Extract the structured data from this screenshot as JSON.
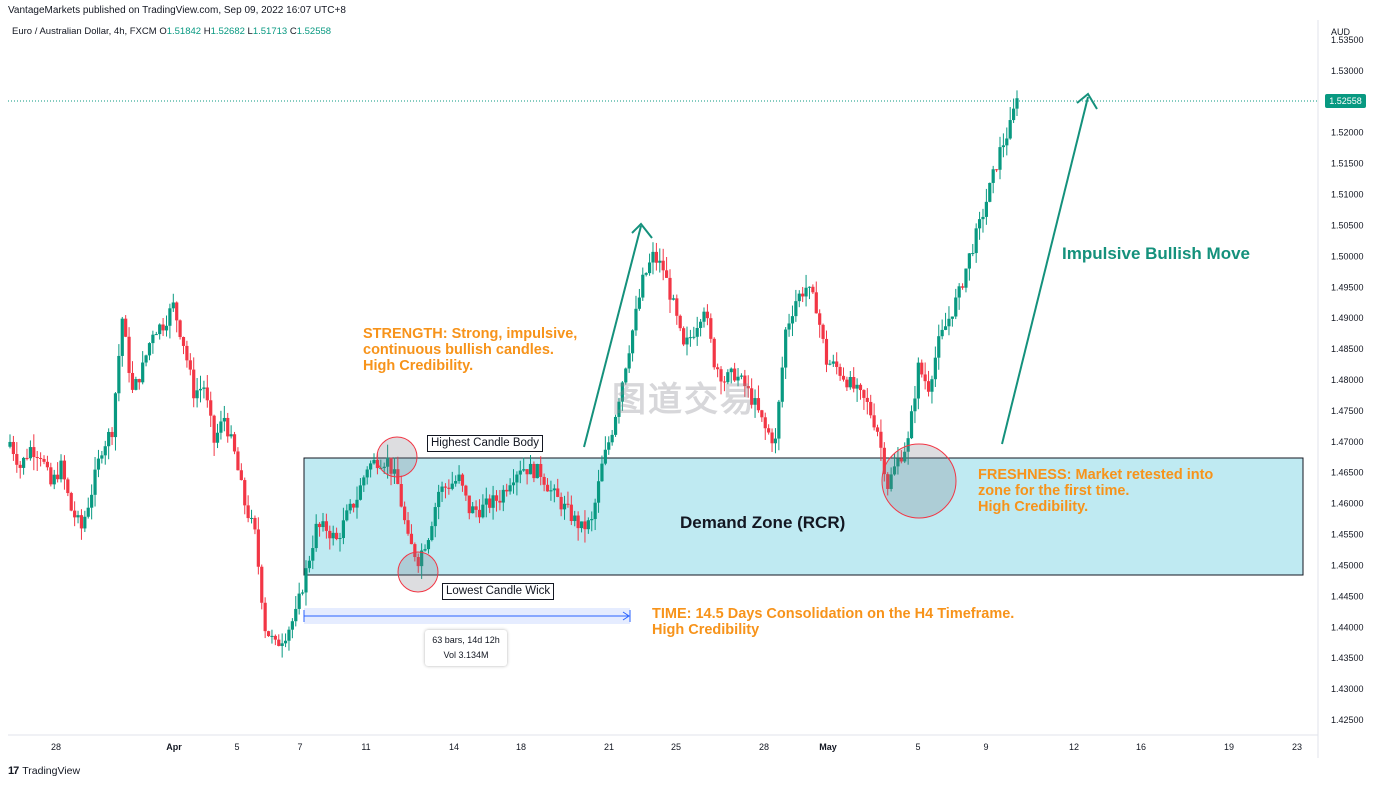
{
  "header": {
    "publisher_line": "VantageMarkets published on TradingView.com, Sep 09, 2022 16:07 UTC+8",
    "symbol": "Euro / Australian Dollar, 4h, FXCM",
    "o_label": "O",
    "o_value": "1.51842",
    "h_label": "H",
    "h_value": "1.52682",
    "l_label": "L",
    "l_value": "1.51713",
    "c_label": "C",
    "c_value": "1.52558"
  },
  "footer": {
    "brand": "TradingView",
    "brand_mark": "17"
  },
  "watermark": "图道交易",
  "price_axis": {
    "unit": "AUD",
    "current_price": "1.52558"
  },
  "annotations": {
    "strength": "STRENGTH: Strong, impulsive,\ncontinuous bullish candles.\nHigh Credibility.",
    "freshness": "FRESHNESS: Market retested into\nzone for the first time.\nHigh Credibility.",
    "time": "TIME: 14.5 Days Consolidation on the H4 Timeframe.\nHigh Credibility",
    "impulsive": "Impulsive Bullish Move",
    "demand_zone": "Demand Zone (RCR)",
    "highest_body": "Highest Candle Body",
    "lowest_wick": "Lowest Candle Wick",
    "measure_bars": "63 bars, 14d 12h",
    "measure_vol": "Vol 3.134M"
  },
  "colors": {
    "bull": "#089981",
    "bear": "#f23645",
    "zone_fill": "#bfeaf2",
    "annotation_orange": "#f7931a",
    "arrow_green": "#14917c",
    "measure_blue": "#2962ff"
  },
  "chart_data": {
    "type": "candlestick",
    "timeframe": "4h",
    "y_ticks": [
      "1.53500",
      "1.53000",
      "1.52500",
      "1.52000",
      "1.51500",
      "1.51000",
      "1.50500",
      "1.50000",
      "1.49500",
      "1.49000",
      "1.48500",
      "1.48000",
      "1.47500",
      "1.47000",
      "1.46500",
      "1.46000",
      "1.45500",
      "1.45000",
      "1.44500",
      "1.44000",
      "1.43500",
      "1.43000",
      "1.42500"
    ],
    "y_range": [
      1.422,
      1.536
    ],
    "x_ticks": [
      "28",
      "Apr",
      "5",
      "7",
      "11",
      "14",
      "18",
      "21",
      "25",
      "28",
      "May",
      "5",
      "9",
      "12",
      "16",
      "19",
      "23"
    ],
    "current_price": 1.52558,
    "demand_zone": {
      "top": 1.4676,
      "bottom": 1.4488
    },
    "close_path": [
      [
        0,
        1.47
      ],
      [
        3,
        1.466
      ],
      [
        6,
        1.469
      ],
      [
        9,
        1.468
      ],
      [
        12,
        1.463
      ],
      [
        15,
        1.466
      ],
      [
        18,
        1.459
      ],
      [
        21,
        1.456
      ],
      [
        24,
        1.462
      ],
      [
        27,
        1.469
      ],
      [
        30,
        1.472
      ],
      [
        33,
        1.49
      ],
      [
        36,
        1.478
      ],
      [
        39,
        1.482
      ],
      [
        42,
        1.488
      ],
      [
        45,
        1.489
      ],
      [
        48,
        1.492
      ],
      [
        51,
        1.486
      ],
      [
        54,
        1.478
      ],
      [
        57,
        1.479
      ],
      [
        60,
        1.47
      ],
      [
        63,
        1.474
      ],
      [
        66,
        1.468
      ],
      [
        69,
        1.46
      ],
      [
        72,
        1.455
      ],
      [
        75,
        1.44
      ],
      [
        78,
        1.437
      ],
      [
        81,
        1.439
      ],
      [
        84,
        1.442
      ],
      [
        87,
        1.449
      ],
      [
        90,
        1.456
      ],
      [
        93,
        1.456
      ],
      [
        96,
        1.454
      ],
      [
        99,
        1.458
      ],
      [
        102,
        1.461
      ],
      [
        105,
        1.466
      ],
      [
        108,
        1.467
      ],
      [
        111,
        1.467
      ],
      [
        114,
        1.463
      ],
      [
        117,
        1.454
      ],
      [
        120,
        1.451
      ],
      [
        123,
        1.455
      ],
      [
        126,
        1.462
      ],
      [
        129,
        1.463
      ],
      [
        132,
        1.464
      ],
      [
        135,
        1.459
      ],
      [
        138,
        1.459
      ],
      [
        141,
        1.46
      ],
      [
        144,
        1.461
      ],
      [
        147,
        1.464
      ],
      [
        150,
        1.466
      ],
      [
        153,
        1.4655
      ],
      [
        156,
        1.465
      ],
      [
        159,
        1.462
      ],
      [
        162,
        1.46
      ],
      [
        165,
        1.458
      ],
      [
        168,
        1.456
      ],
      [
        171,
        1.457
      ],
      [
        174,
        1.466
      ],
      [
        177,
        1.472
      ],
      [
        180,
        1.48
      ],
      [
        183,
        1.488
      ],
      [
        186,
        1.496
      ],
      [
        189,
        1.5
      ],
      [
        192,
        1.498
      ],
      [
        195,
        1.492
      ],
      [
        198,
        1.485
      ],
      [
        201,
        1.488
      ],
      [
        204,
        1.492
      ],
      [
        207,
        1.483
      ],
      [
        210,
        1.48
      ],
      [
        213,
        1.481
      ],
      [
        216,
        1.479
      ],
      [
        219,
        1.476
      ],
      [
        222,
        1.472
      ],
      [
        225,
        1.47
      ],
      [
        228,
        1.488
      ],
      [
        231,
        1.493
      ],
      [
        234,
        1.495
      ],
      [
        237,
        1.492
      ],
      [
        240,
        1.483
      ],
      [
        243,
        1.482
      ],
      [
        246,
        1.48
      ],
      [
        249,
        1.478
      ],
      [
        252,
        1.476
      ],
      [
        255,
        1.472
      ],
      [
        258,
        1.463
      ],
      [
        261,
        1.467
      ],
      [
        264,
        1.47
      ],
      [
        267,
        1.482
      ],
      [
        270,
        1.479
      ],
      [
        273,
        1.486
      ],
      [
        276,
        1.49
      ],
      [
        279,
        1.494
      ],
      [
        282,
        1.5
      ],
      [
        285,
        1.505
      ],
      [
        288,
        1.511
      ],
      [
        291,
        1.517
      ],
      [
        294,
        1.521
      ],
      [
        296,
        1.52558
      ]
    ]
  }
}
